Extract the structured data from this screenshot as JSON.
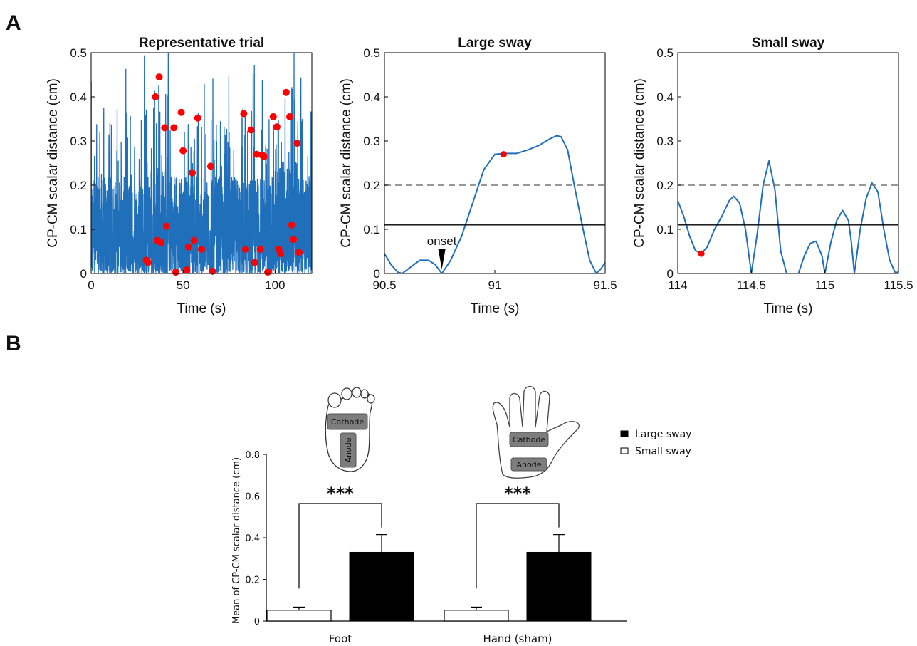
{
  "panel_labels": {
    "a": "A",
    "b": "B"
  },
  "colors": {
    "line": "#1f6fba",
    "peak": "#ff0000",
    "threshold_dashed": "#777777",
    "threshold_solid": "#000000",
    "bar_large": "#000000",
    "bar_small": "#ffffff"
  },
  "illustrations": {
    "foot": {
      "icon": "foot-outline-icon",
      "cathode": "Cathode",
      "anode": "Anode"
    },
    "hand": {
      "icon": "hand-outline-icon",
      "cathode": "Cathode",
      "anode": "Anode"
    }
  },
  "chart_data": [
    {
      "type": "line",
      "title": "Representative trial",
      "xlabel": "Time (s)",
      "ylabel": "CP-CM scalar distance (cm)",
      "xlim": [
        0,
        120
      ],
      "ylim": [
        0,
        0.5
      ],
      "xticks": [
        0,
        50,
        100
      ],
      "yticks": [
        0,
        0.1,
        0.2,
        0.3,
        0.4,
        0.5
      ],
      "series": [
        {
          "kind": "dense-noise",
          "x_range": [
            0,
            120
          ],
          "y_max": 0.5
        }
      ],
      "peaks": [
        {
          "x": 30,
          "y": 0.03
        },
        {
          "x": 31,
          "y": 0.025
        },
        {
          "x": 35,
          "y": 0.4
        },
        {
          "x": 36,
          "y": 0.075
        },
        {
          "x": 37,
          "y": 0.445
        },
        {
          "x": 38,
          "y": 0.07
        },
        {
          "x": 40,
          "y": 0.33
        },
        {
          "x": 41,
          "y": 0.107
        },
        {
          "x": 45,
          "y": 0.33
        },
        {
          "x": 46,
          "y": 0.003
        },
        {
          "x": 49,
          "y": 0.365
        },
        {
          "x": 50,
          "y": 0.278
        },
        {
          "x": 52,
          "y": 0.008
        },
        {
          "x": 53,
          "y": 0.06
        },
        {
          "x": 55,
          "y": 0.228
        },
        {
          "x": 56,
          "y": 0.075
        },
        {
          "x": 58,
          "y": 0.352
        },
        {
          "x": 60,
          "y": 0.055
        },
        {
          "x": 65,
          "y": 0.243
        },
        {
          "x": 66,
          "y": 0.005
        },
        {
          "x": 83,
          "y": 0.362
        },
        {
          "x": 84,
          "y": 0.055
        },
        {
          "x": 87,
          "y": 0.325
        },
        {
          "x": 89,
          "y": 0.025
        },
        {
          "x": 90,
          "y": 0.27
        },
        {
          "x": 92,
          "y": 0.055
        },
        {
          "x": 93,
          "y": 0.268
        },
        {
          "x": 94,
          "y": 0.265
        },
        {
          "x": 96,
          "y": 0.003
        },
        {
          "x": 99,
          "y": 0.355
        },
        {
          "x": 101,
          "y": 0.332
        },
        {
          "x": 102,
          "y": 0.055
        },
        {
          "x": 103,
          "y": 0.045
        },
        {
          "x": 106,
          "y": 0.41
        },
        {
          "x": 108,
          "y": 0.355
        },
        {
          "x": 109,
          "y": 0.11
        },
        {
          "x": 110,
          "y": 0.077
        },
        {
          "x": 112,
          "y": 0.295
        },
        {
          "x": 113,
          "y": 0.048
        }
      ]
    },
    {
      "type": "line",
      "title": "Large sway",
      "xlabel": "Time (s)",
      "ylabel": "CP-CM scalar distance (cm)",
      "xlim": [
        90.5,
        91.5
      ],
      "ylim": [
        0,
        0.5
      ],
      "xticks": [
        90.5,
        91,
        91.5
      ],
      "yticks": [
        0,
        0.1,
        0.2,
        0.3,
        0.4,
        0.5
      ],
      "thresholds": {
        "dashed": 0.2,
        "solid": 0.11
      },
      "series": [
        {
          "x": [
            90.5,
            90.53,
            90.56,
            90.58,
            90.62,
            90.66,
            90.7,
            90.73,
            90.76,
            90.8,
            90.85,
            90.9,
            90.95,
            91.0,
            91.05,
            91.1,
            91.15,
            91.2,
            91.25,
            91.28,
            91.3,
            91.33,
            91.36,
            91.4,
            91.43,
            91.46,
            91.48,
            91.5
          ],
          "y": [
            0.045,
            0.02,
            0.003,
            0.0,
            0.015,
            0.03,
            0.03,
            0.02,
            0.0,
            0.03,
            0.085,
            0.16,
            0.235,
            0.27,
            0.272,
            0.272,
            0.28,
            0.29,
            0.305,
            0.312,
            0.31,
            0.28,
            0.2,
            0.1,
            0.03,
            0.0,
            0.01,
            0.025
          ]
        }
      ],
      "peaks": [
        {
          "x": 91.04,
          "y": 0.27
        }
      ],
      "annotation": {
        "text": "onset",
        "x": 90.76,
        "y": 0.0
      }
    },
    {
      "type": "line",
      "title": "Small sway",
      "xlabel": "Time (s)",
      "ylabel": "CP-CM scalar distance (cm)",
      "xlim": [
        114,
        115.5
      ],
      "ylim": [
        0,
        0.5
      ],
      "xticks": [
        114,
        114.5,
        115,
        115.5
      ],
      "yticks": [
        0,
        0.1,
        0.2,
        0.3,
        0.4,
        0.5
      ],
      "thresholds": {
        "dashed": 0.2,
        "solid": 0.11
      },
      "series": [
        {
          "x": [
            114.0,
            114.04,
            114.08,
            114.12,
            114.16,
            114.2,
            114.25,
            114.3,
            114.35,
            114.38,
            114.42,
            114.46,
            114.5,
            114.54,
            114.58,
            114.62,
            114.66,
            114.7,
            114.74,
            114.78,
            114.82,
            114.86,
            114.9,
            114.94,
            114.98,
            115.0,
            115.04,
            115.08,
            115.12,
            115.16,
            115.18,
            115.2,
            115.24,
            115.28,
            115.32,
            115.36,
            115.4,
            115.44,
            115.48,
            115.5
          ],
          "y": [
            0.165,
            0.13,
            0.085,
            0.052,
            0.045,
            0.06,
            0.1,
            0.13,
            0.165,
            0.175,
            0.16,
            0.1,
            0.0,
            0.09,
            0.2,
            0.255,
            0.19,
            0.05,
            0.0,
            0.0,
            0.0,
            0.04,
            0.068,
            0.073,
            0.04,
            0.0,
            0.07,
            0.12,
            0.143,
            0.12,
            0.07,
            0.0,
            0.1,
            0.17,
            0.205,
            0.185,
            0.1,
            0.03,
            0.0,
            0.005
          ]
        }
      ],
      "peaks": [
        {
          "x": 114.16,
          "y": 0.045
        }
      ]
    },
    {
      "type": "bar",
      "xlabel": "",
      "ylabel": "Mean of CP-CM scalar distance (cm)",
      "ylim": [
        0,
        0.8
      ],
      "yticks": [
        0,
        0.2,
        0.4,
        0.6,
        0.8
      ],
      "categories": [
        "Foot",
        "Hand (sham)"
      ],
      "series": [
        {
          "name": "Small sway",
          "values": [
            0.052,
            0.052
          ],
          "errors": [
            0.015,
            0.015
          ]
        },
        {
          "name": "Large sway",
          "values": [
            0.33,
            0.33
          ],
          "errors": [
            0.085,
            0.085
          ]
        }
      ],
      "significance": [
        "***",
        "***"
      ],
      "legend": "right"
    }
  ]
}
